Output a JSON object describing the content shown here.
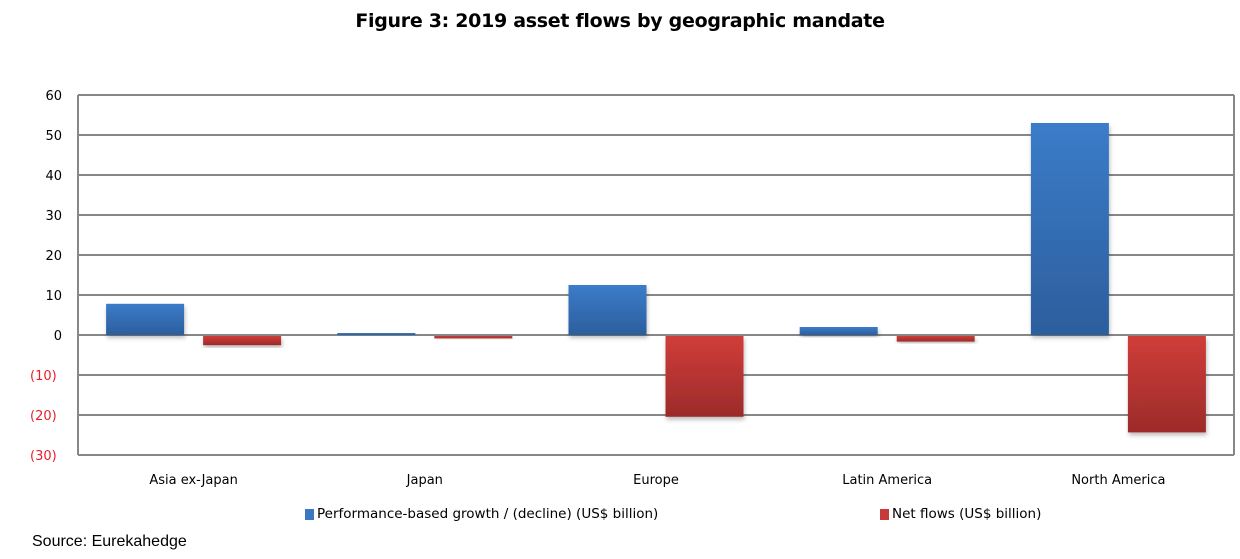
{
  "chart_data": {
    "type": "bar",
    "title": "Figure 3: 2019 asset flows by geographic mandate",
    "xlabel": "",
    "ylabel": "",
    "categories": [
      "Asia ex-Japan",
      "Japan",
      "Europe",
      "Latin America",
      "North America"
    ],
    "series": [
      {
        "name": "Performance-based growth / (decline) (US$ billion)",
        "color": "#3a78c4",
        "values": [
          7.8,
          0.5,
          12.5,
          2.0,
          53.0
        ]
      },
      {
        "name": "Net flows (US$ billion)",
        "color": "#c8393a",
        "values": [
          -2.3,
          -0.6,
          -20.2,
          -1.4,
          -24.1
        ]
      }
    ],
    "ylim": [
      -30,
      60
    ],
    "yticks": [
      60,
      50,
      40,
      30,
      20,
      10,
      0,
      -10,
      -20,
      -30
    ],
    "ytick_labels": [
      "60",
      "50",
      "40",
      "30",
      "20",
      "10",
      "0",
      "(10)",
      "(20)",
      "(30)"
    ],
    "negative_tick_color": "#e8202a",
    "grid": true,
    "legend_position": "bottom"
  },
  "source": "Source: Eurekahedge"
}
